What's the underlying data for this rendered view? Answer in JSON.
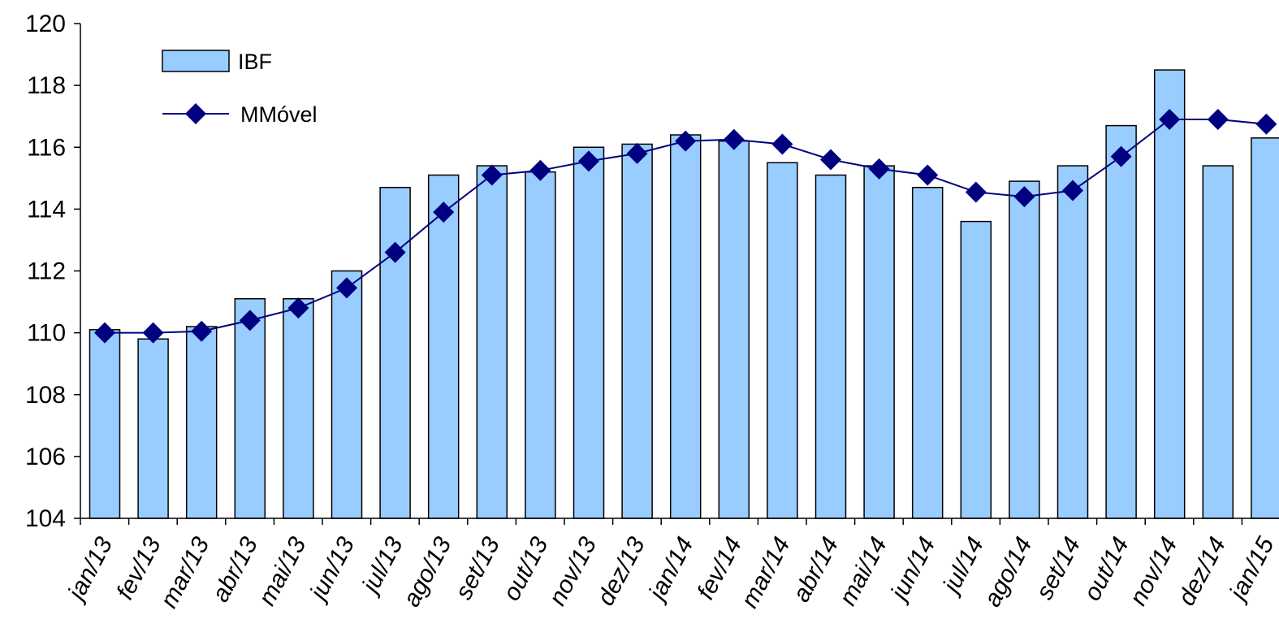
{
  "chart_data": {
    "type": "bar",
    "title": "",
    "xlabel": "",
    "ylabel": "",
    "ylim": [
      104,
      120
    ],
    "yticks": [
      104,
      106,
      108,
      110,
      112,
      114,
      116,
      118,
      120
    ],
    "categories": [
      "jan/13",
      "fev/13",
      "mar/13",
      "abr/13",
      "mai/13",
      "jun/13",
      "jul/13",
      "ago/13",
      "set/13",
      "out/13",
      "nov/13",
      "dez/13",
      "jan/14",
      "fev/14",
      "mar/14",
      "abr/14",
      "mai/14",
      "jun/14",
      "jul/14",
      "ago/14",
      "set/14",
      "out/14",
      "nov/14",
      "dez/14",
      "jan/15"
    ],
    "grid": false,
    "legend_position": "top-left",
    "series": [
      {
        "name": "IBF",
        "type": "bar",
        "color": "#99ccff",
        "values": [
          110.1,
          109.8,
          110.2,
          111.1,
          111.1,
          112.0,
          114.7,
          115.1,
          115.4,
          115.2,
          116.0,
          116.1,
          116.4,
          116.2,
          115.5,
          115.1,
          115.4,
          114.7,
          113.6,
          114.9,
          115.4,
          116.7,
          118.5,
          115.4,
          116.3
        ]
      },
      {
        "name": "MMóvel",
        "type": "line",
        "color": "#000080",
        "values": [
          110.0,
          110.0,
          110.05,
          110.4,
          110.8,
          111.45,
          112.6,
          113.9,
          115.1,
          115.25,
          115.55,
          115.8,
          116.2,
          116.25,
          116.1,
          115.6,
          115.3,
          115.1,
          114.55,
          114.4,
          114.6,
          115.7,
          116.9,
          116.9,
          116.75
        ]
      }
    ]
  }
}
